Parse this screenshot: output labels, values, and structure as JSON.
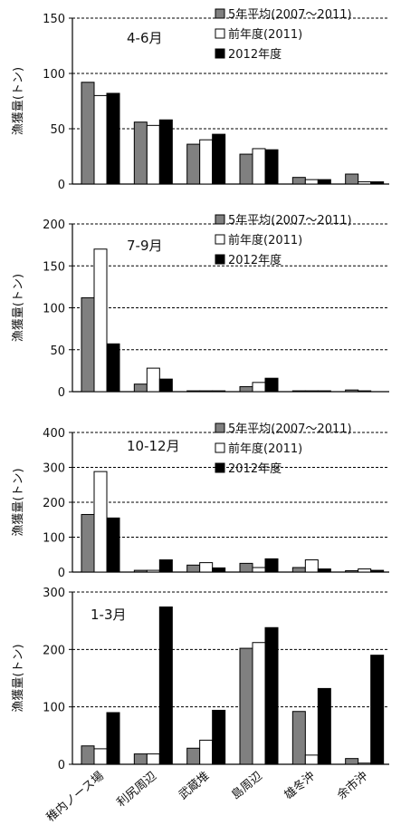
{
  "chart_data": [
    {
      "type": "bar",
      "period_label": "4-6月",
      "ylabel": "漁獲量(トン)",
      "ylim": [
        0,
        150
      ],
      "yticks": [
        0,
        50,
        100,
        150
      ],
      "grid": "dashed-horizontal",
      "legend_placement": "top-right",
      "categories": [
        "稚内ノース場",
        "利尻周辺",
        "武蔵堆",
        "島周辺",
        "雄冬沖",
        "余市沖"
      ],
      "series": [
        {
          "name": "5年平均(2007～2011)",
          "color": "#808080",
          "values": [
            92,
            56,
            36,
            27,
            6,
            9
          ]
        },
        {
          "name": "前年度(2011)",
          "color": "#ffffff",
          "values": [
            80,
            53,
            40,
            32,
            4,
            2
          ]
        },
        {
          "name": "2012年度",
          "color": "#000000",
          "values": [
            82,
            58,
            45,
            31,
            4,
            2
          ]
        }
      ]
    },
    {
      "type": "bar",
      "period_label": "7-9月",
      "ylabel": "漁獲量(トン)",
      "ylim": [
        0,
        200
      ],
      "yticks": [
        0,
        50,
        100,
        150,
        200
      ],
      "grid": "dashed-horizontal",
      "legend_placement": "top-right",
      "categories": [
        "稚内ノース場",
        "利尻周辺",
        "武蔵堆",
        "島周辺",
        "雄冬沖",
        "余市沖"
      ],
      "series": [
        {
          "name": "5年平均(2007～2011)",
          "color": "#808080",
          "values": [
            112,
            9,
            1,
            6,
            1,
            2
          ]
        },
        {
          "name": "前年度(2011)",
          "color": "#ffffff",
          "values": [
            170,
            28,
            1,
            11,
            1,
            1
          ]
        },
        {
          "name": "2012年度",
          "color": "#000000",
          "values": [
            57,
            15,
            1,
            16,
            1,
            0
          ]
        }
      ]
    },
    {
      "type": "bar",
      "period_label": "10-12月",
      "ylabel": "漁獲量(トン)",
      "ylim": [
        0,
        400
      ],
      "yticks": [
        0,
        100,
        200,
        300,
        400
      ],
      "grid": "dashed-horizontal",
      "legend_placement": "top-right",
      "categories": [
        "稚内ノース場",
        "利尻周辺",
        "武蔵堆",
        "島周辺",
        "雄冬沖",
        "余市沖"
      ],
      "series": [
        {
          "name": "5年平均(2007～2011)",
          "color": "#808080",
          "values": [
            165,
            5,
            20,
            25,
            13,
            4
          ]
        },
        {
          "name": "前年度(2011)",
          "color": "#ffffff",
          "values": [
            288,
            5,
            27,
            13,
            35,
            9
          ]
        },
        {
          "name": "2012年度",
          "color": "#000000",
          "values": [
            155,
            35,
            12,
            38,
            9,
            5
          ]
        }
      ]
    },
    {
      "type": "bar",
      "period_label": "1-3月",
      "ylabel": "漁獲量(トン)",
      "ylim": [
        0,
        300
      ],
      "yticks": [
        0,
        100,
        200,
        300
      ],
      "grid": "dashed-horizontal",
      "legend_placement": "none",
      "categories": [
        "稚内ノース場",
        "利尻周辺",
        "武蔵堆",
        "島周辺",
        "雄冬沖",
        "余市沖"
      ],
      "series": [
        {
          "name": "5年平均(2007～2011)",
          "color": "#808080",
          "values": [
            32,
            18,
            28,
            202,
            92,
            10
          ]
        },
        {
          "name": "前年度(2011)",
          "color": "#ffffff",
          "values": [
            27,
            18,
            42,
            212,
            16,
            2
          ]
        },
        {
          "name": "2012年度",
          "color": "#000000",
          "values": [
            90,
            274,
            94,
            238,
            132,
            190
          ]
        }
      ]
    }
  ]
}
